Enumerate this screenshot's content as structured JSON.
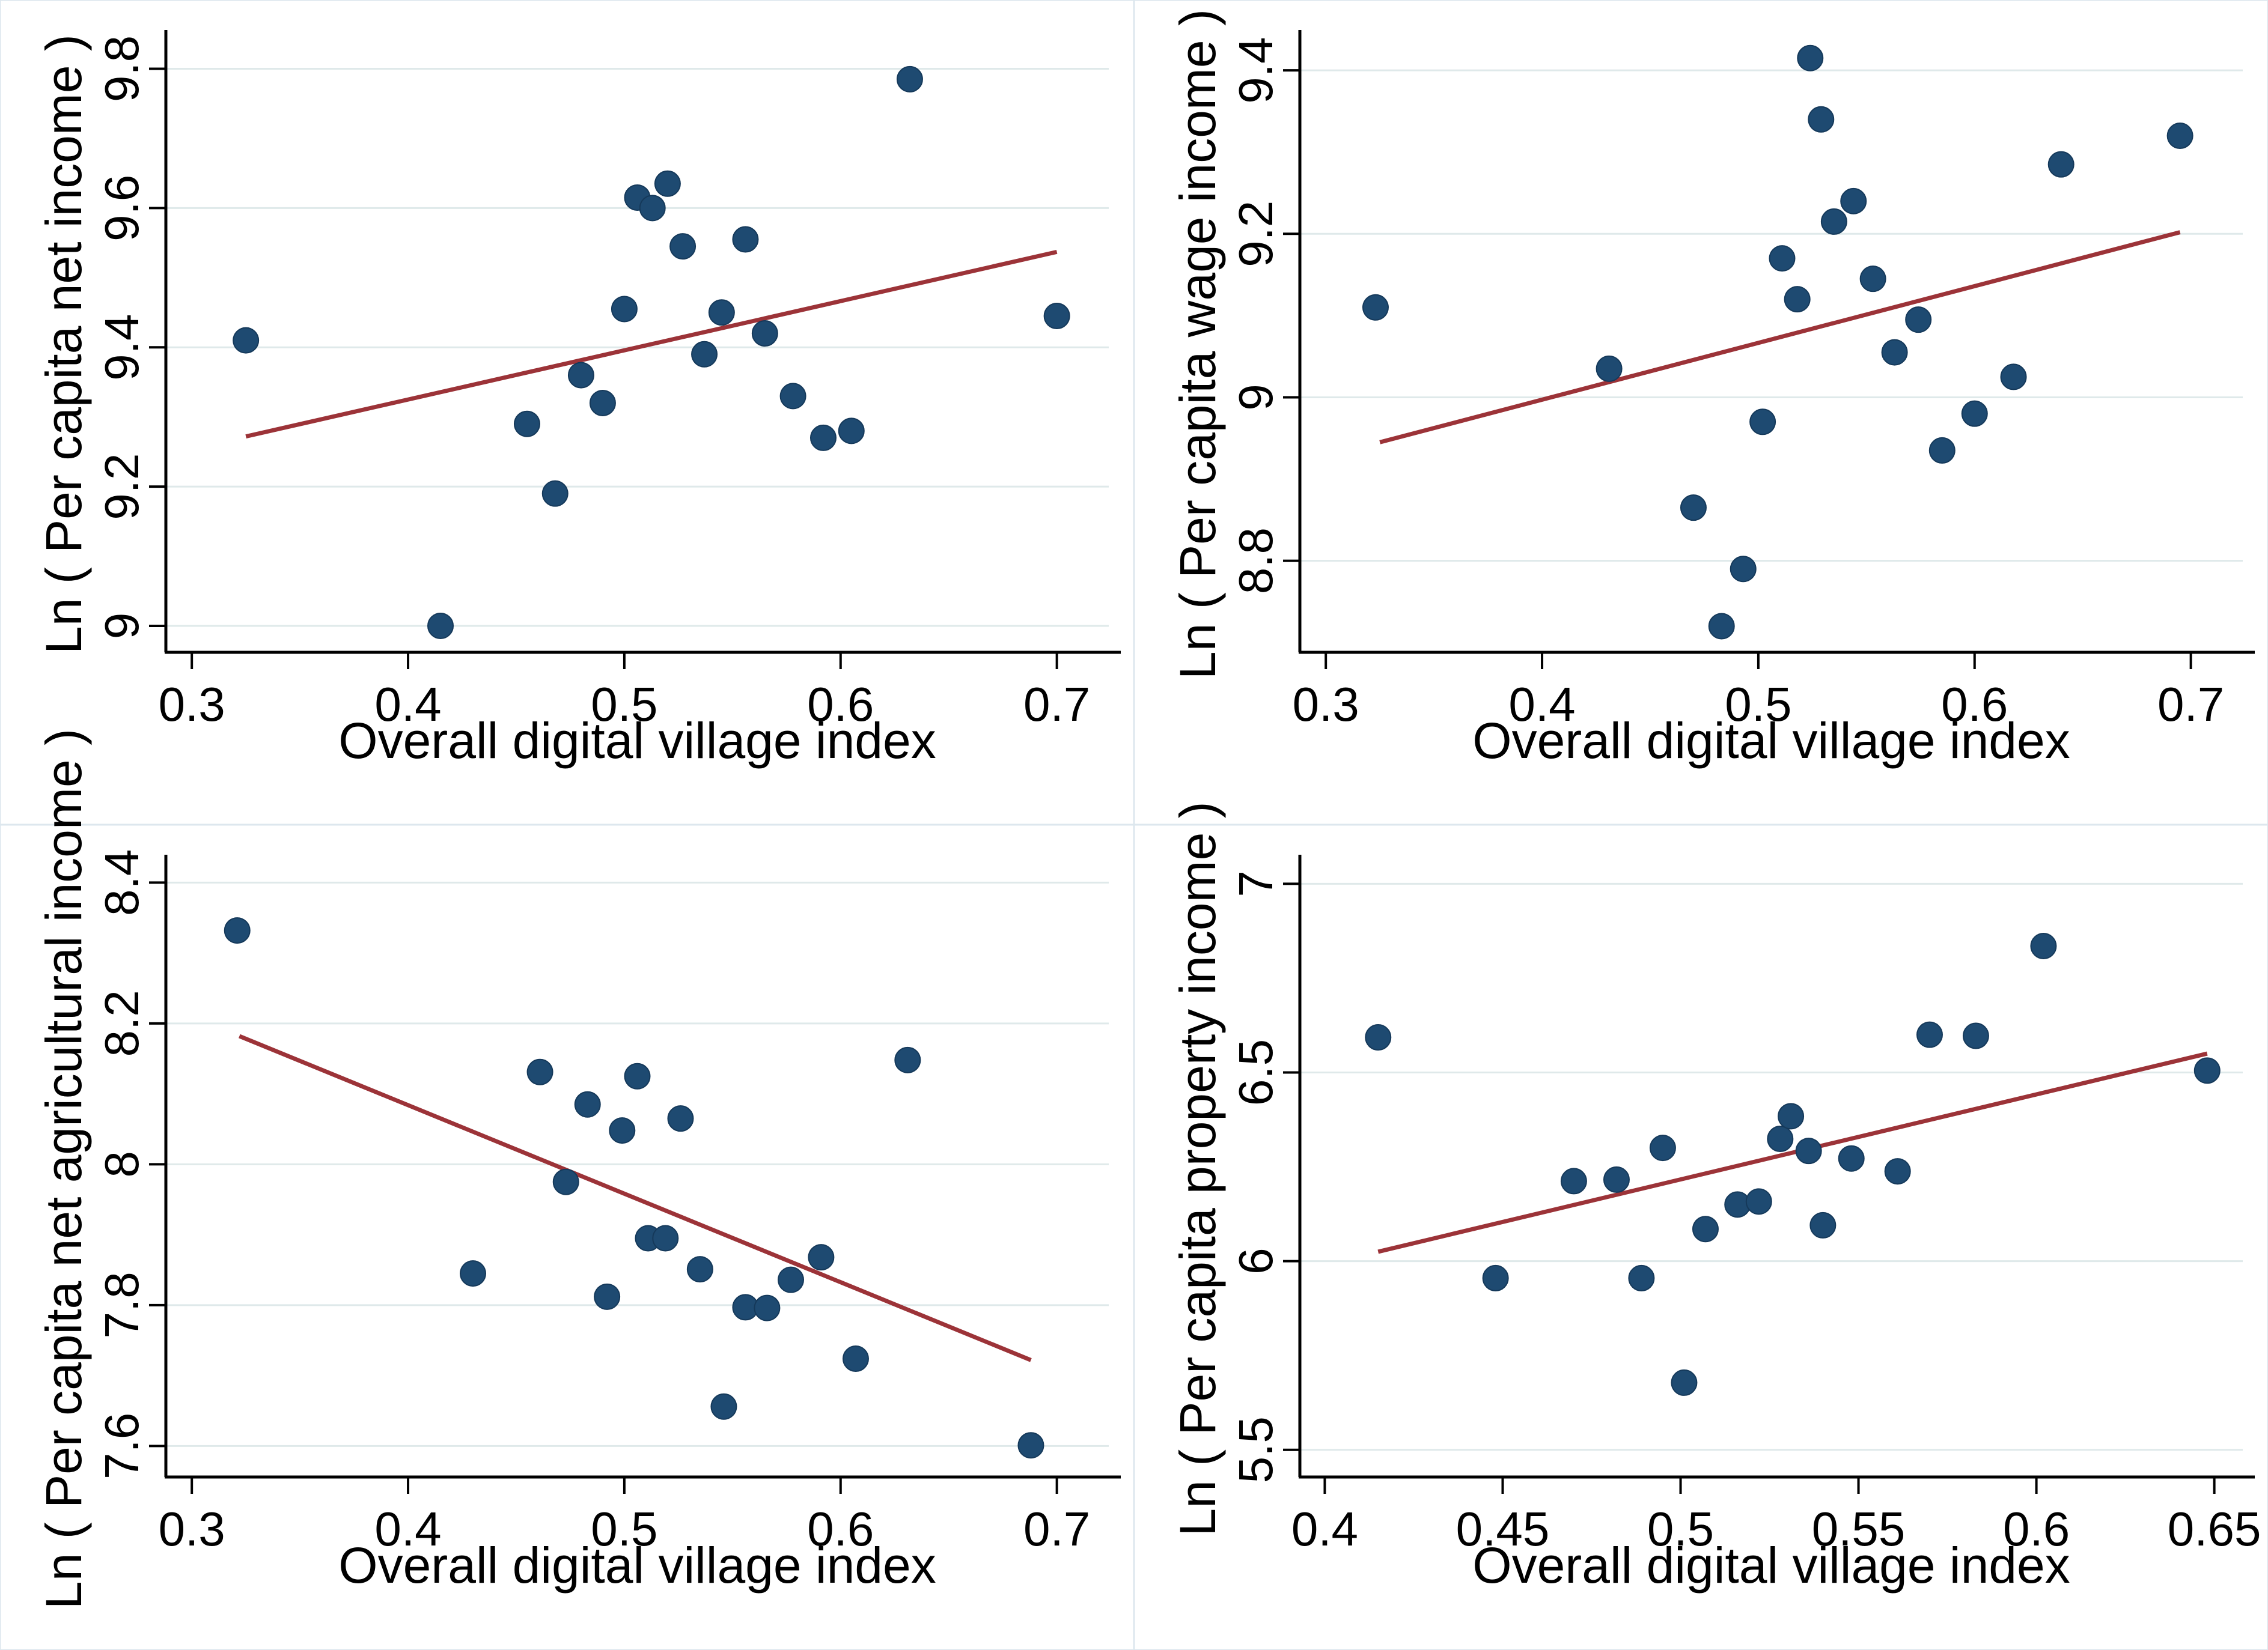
{
  "figure": {
    "description": "Four Stata-style binned scatter plots with linear fit lines relating the overall digital village index to log income measures",
    "x_axis_label_shared": "Overall digital village index"
  },
  "style": {
    "dot_fill": "#1e4a71",
    "dot_stroke": "#15395a",
    "trend_color": "#9c3338",
    "grid_color": "#dfe9ea",
    "axis_color": "#000000",
    "border_color": "#dde7ee",
    "background": "#ffffff"
  },
  "chart_data": [
    {
      "type": "scatter",
      "name": "net-income",
      "title": "",
      "xlabel": "Overall digital village index",
      "ylabel": "Ln ( Per capita net income )",
      "xlim": [
        0.288,
        0.724
      ],
      "ylim": [
        8.962,
        9.847
      ],
      "xticks": {
        "values": [
          0.3,
          0.4,
          0.5,
          0.6,
          0.7
        ],
        "labels": [
          "0.3",
          "0.4",
          "0.5",
          "0.6",
          "0.7"
        ]
      },
      "yticks": {
        "values": [
          9,
          9.2,
          9.4,
          9.6,
          9.8
        ],
        "labels": [
          "9",
          "9.2",
          "9.4",
          "9.6",
          "9.8"
        ]
      },
      "grid": "horizontal",
      "legend": "none",
      "points": [
        [
          0.325,
          9.41
        ],
        [
          0.415,
          9.0
        ],
        [
          0.455,
          9.29
        ],
        [
          0.468,
          9.19
        ],
        [
          0.48,
          9.36
        ],
        [
          0.49,
          9.32
        ],
        [
          0.5,
          9.455
        ],
        [
          0.506,
          9.615
        ],
        [
          0.513,
          9.6
        ],
        [
          0.52,
          9.635
        ],
        [
          0.527,
          9.545
        ],
        [
          0.537,
          9.39
        ],
        [
          0.545,
          9.45
        ],
        [
          0.556,
          9.555
        ],
        [
          0.565,
          9.42
        ],
        [
          0.578,
          9.33
        ],
        [
          0.592,
          9.27
        ],
        [
          0.605,
          9.28
        ],
        [
          0.632,
          9.785
        ],
        [
          0.7,
          9.445
        ]
      ],
      "trend": {
        "x1": 0.325,
        "y1": 9.272,
        "x2": 0.7,
        "y2": 9.537
      }
    },
    {
      "type": "scatter",
      "name": "wage-income",
      "title": "",
      "xlabel": "Overall digital village index",
      "ylabel": "Ln ( Per capita wage income )",
      "xlim": [
        0.288,
        0.724
      ],
      "ylim": [
        8.688,
        9.442
      ],
      "xticks": {
        "values": [
          0.3,
          0.4,
          0.5,
          0.6,
          0.7
        ],
        "labels": [
          "0.3",
          "0.4",
          "0.5",
          "0.6",
          "0.7"
        ]
      },
      "yticks": {
        "values": [
          8.8,
          9,
          9.2,
          9.4
        ],
        "labels": [
          "8.8",
          "9",
          "9.2",
          "9.4"
        ]
      },
      "grid": "horizontal",
      "legend": "none",
      "points": [
        [
          0.323,
          9.11
        ],
        [
          0.431,
          9.035
        ],
        [
          0.47,
          8.865
        ],
        [
          0.483,
          8.72
        ],
        [
          0.493,
          8.79
        ],
        [
          0.502,
          8.97
        ],
        [
          0.511,
          9.17
        ],
        [
          0.518,
          9.12
        ],
        [
          0.524,
          9.415
        ],
        [
          0.529,
          9.34
        ],
        [
          0.535,
          9.215
        ],
        [
          0.544,
          9.24
        ],
        [
          0.553,
          9.145
        ],
        [
          0.563,
          9.055
        ],
        [
          0.574,
          9.095
        ],
        [
          0.585,
          8.935
        ],
        [
          0.6,
          8.98
        ],
        [
          0.618,
          9.025
        ],
        [
          0.64,
          9.285
        ],
        [
          0.695,
          9.32
        ]
      ],
      "trend": {
        "x1": 0.325,
        "y1": 8.945,
        "x2": 0.695,
        "y2": 9.202
      }
    },
    {
      "type": "scatter",
      "name": "agricultural-income",
      "title": "",
      "xlabel": "Overall digital village index",
      "ylabel": "Ln ( Per capita net agricultural income )",
      "xlim": [
        0.288,
        0.724
      ],
      "ylim": [
        7.556,
        8.431
      ],
      "xticks": {
        "values": [
          0.3,
          0.4,
          0.5,
          0.6,
          0.7
        ],
        "labels": [
          "0.3",
          "0.4",
          "0.5",
          "0.6",
          "0.7"
        ]
      },
      "yticks": {
        "values": [
          7.6,
          7.8,
          8,
          8.2,
          8.4
        ],
        "labels": [
          "7.6",
          "7.8",
          "8",
          "8.2",
          "8.4"
        ]
      },
      "grid": "horizontal",
      "legend": "none",
      "points": [
        [
          0.321,
          8.332
        ],
        [
          0.43,
          7.845
        ],
        [
          0.461,
          8.131
        ],
        [
          0.473,
          7.975
        ],
        [
          0.483,
          8.085
        ],
        [
          0.492,
          7.812
        ],
        [
          0.499,
          8.048
        ],
        [
          0.506,
          8.125
        ],
        [
          0.511,
          7.895
        ],
        [
          0.519,
          7.895
        ],
        [
          0.526,
          8.065
        ],
        [
          0.535,
          7.851
        ],
        [
          0.546,
          7.656
        ],
        [
          0.556,
          7.797
        ],
        [
          0.566,
          7.796
        ],
        [
          0.577,
          7.836
        ],
        [
          0.591,
          7.868
        ],
        [
          0.607,
          7.724
        ],
        [
          0.631,
          8.148
        ],
        [
          0.688,
          7.601
        ]
      ],
      "trend": {
        "x1": 0.322,
        "y1": 8.182,
        "x2": 0.688,
        "y2": 7.722
      }
    },
    {
      "type": "scatter",
      "name": "property-income",
      "title": "",
      "xlabel": "Overall digital village index",
      "ylabel": "Ln ( Per capita property income )",
      "xlim": [
        0.393,
        0.658
      ],
      "ylim": [
        5.428,
        7.061
      ],
      "xticks": {
        "values": [
          0.4,
          0.45,
          0.5,
          0.55,
          0.6,
          0.65
        ],
        "labels": [
          "0.4",
          "0.45",
          "0.5",
          "0.55",
          "0.6",
          "0.65"
        ]
      },
      "yticks": {
        "values": [
          5.5,
          6,
          6.5,
          7
        ],
        "labels": [
          "5.5",
          "6",
          "6.5",
          "7"
        ]
      },
      "grid": "horizontal",
      "legend": "none",
      "points": [
        [
          0.415,
          6.593
        ],
        [
          0.448,
          5.955
        ],
        [
          0.47,
          6.212
        ],
        [
          0.482,
          6.216
        ],
        [
          0.489,
          5.955
        ],
        [
          0.495,
          6.3
        ],
        [
          0.501,
          5.678
        ],
        [
          0.507,
          6.085
        ],
        [
          0.516,
          6.15
        ],
        [
          0.522,
          6.158
        ],
        [
          0.528,
          6.324
        ],
        [
          0.531,
          6.384
        ],
        [
          0.536,
          6.292
        ],
        [
          0.54,
          6.095
        ],
        [
          0.548,
          6.272
        ],
        [
          0.561,
          6.238
        ],
        [
          0.57,
          6.6
        ],
        [
          0.583,
          6.597
        ],
        [
          0.602,
          6.835
        ],
        [
          0.648,
          6.505
        ]
      ],
      "trend": {
        "x1": 0.415,
        "y1": 6.025,
        "x2": 0.648,
        "y2": 6.55
      }
    }
  ]
}
